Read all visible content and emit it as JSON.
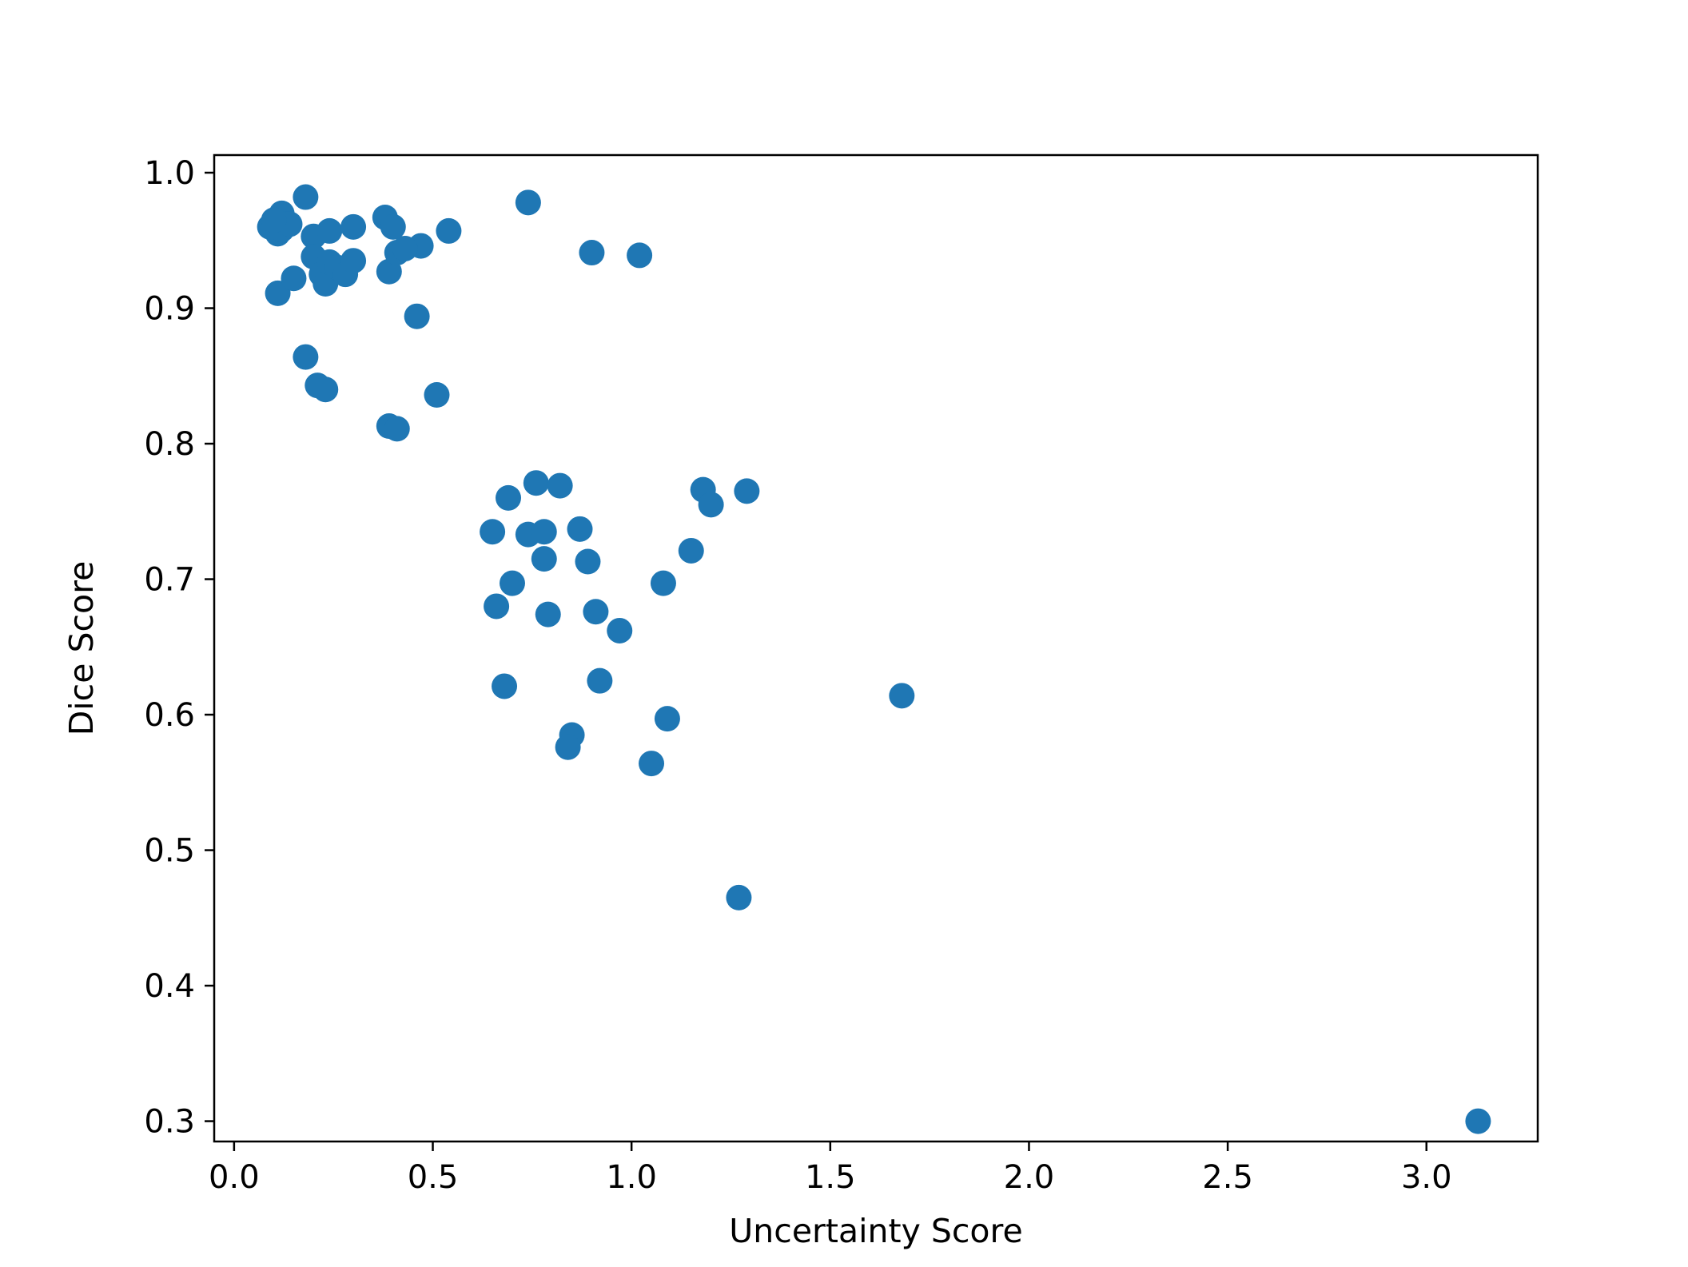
{
  "chart_data": {
    "type": "scatter",
    "title": "",
    "xlabel": "Uncertainty Score",
    "ylabel": "Dice Score",
    "xlim": [
      -0.05,
      3.28
    ],
    "ylim": [
      0.285,
      1.013
    ],
    "xticks": [
      0.0,
      0.5,
      1.0,
      1.5,
      2.0,
      2.5,
      3.0
    ],
    "xtick_labels": [
      "0.0",
      "0.5",
      "1.0",
      "1.5",
      "2.0",
      "2.5",
      "3.0"
    ],
    "yticks": [
      0.3,
      0.4,
      0.5,
      0.6,
      0.7,
      0.8,
      0.9,
      1.0
    ],
    "ytick_labels": [
      "0.3",
      "0.4",
      "0.5",
      "0.6",
      "0.7",
      "0.8",
      "0.9",
      "1.0"
    ],
    "grid": false,
    "legend": "none",
    "color": "#1f77b4",
    "points": [
      [
        0.09,
        0.96
      ],
      [
        0.11,
        0.955
      ],
      [
        0.12,
        0.97
      ],
      [
        0.13,
        0.962
      ],
      [
        0.12,
        0.958
      ],
      [
        0.14,
        0.962
      ],
      [
        0.1,
        0.965
      ],
      [
        0.18,
        0.982
      ],
      [
        0.2,
        0.953
      ],
      [
        0.24,
        0.957
      ],
      [
        0.3,
        0.96
      ],
      [
        0.38,
        0.967
      ],
      [
        0.4,
        0.96
      ],
      [
        0.47,
        0.946
      ],
      [
        0.54,
        0.957
      ],
      [
        0.74,
        0.978
      ],
      [
        0.9,
        0.941
      ],
      [
        1.02,
        0.939
      ],
      [
        0.11,
        0.911
      ],
      [
        0.15,
        0.922
      ],
      [
        0.2,
        0.938
      ],
      [
        0.22,
        0.925
      ],
      [
        0.23,
        0.918
      ],
      [
        0.24,
        0.934
      ],
      [
        0.26,
        0.93
      ],
      [
        0.28,
        0.925
      ],
      [
        0.3,
        0.935
      ],
      [
        0.39,
        0.927
      ],
      [
        0.41,
        0.941
      ],
      [
        0.43,
        0.944
      ],
      [
        0.46,
        0.894
      ],
      [
        0.18,
        0.864
      ],
      [
        0.21,
        0.843
      ],
      [
        0.23,
        0.84
      ],
      [
        0.51,
        0.836
      ],
      [
        0.39,
        0.813
      ],
      [
        0.41,
        0.811
      ],
      [
        0.65,
        0.735
      ],
      [
        0.69,
        0.76
      ],
      [
        0.74,
        0.733
      ],
      [
        0.76,
        0.771
      ],
      [
        0.78,
        0.735
      ],
      [
        0.82,
        0.769
      ],
      [
        0.87,
        0.737
      ],
      [
        0.78,
        0.715
      ],
      [
        0.89,
        0.713
      ],
      [
        0.7,
        0.697
      ],
      [
        0.66,
        0.68
      ],
      [
        0.79,
        0.674
      ],
      [
        0.91,
        0.676
      ],
      [
        0.97,
        0.662
      ],
      [
        1.08,
        0.697
      ],
      [
        1.15,
        0.721
      ],
      [
        1.18,
        0.766
      ],
      [
        1.2,
        0.755
      ],
      [
        1.29,
        0.765
      ],
      [
        0.68,
        0.621
      ],
      [
        0.92,
        0.625
      ],
      [
        0.85,
        0.585
      ],
      [
        0.84,
        0.576
      ],
      [
        1.09,
        0.597
      ],
      [
        1.05,
        0.564
      ],
      [
        1.68,
        0.614
      ],
      [
        1.27,
        0.465
      ],
      [
        3.13,
        0.3
      ]
    ]
  }
}
